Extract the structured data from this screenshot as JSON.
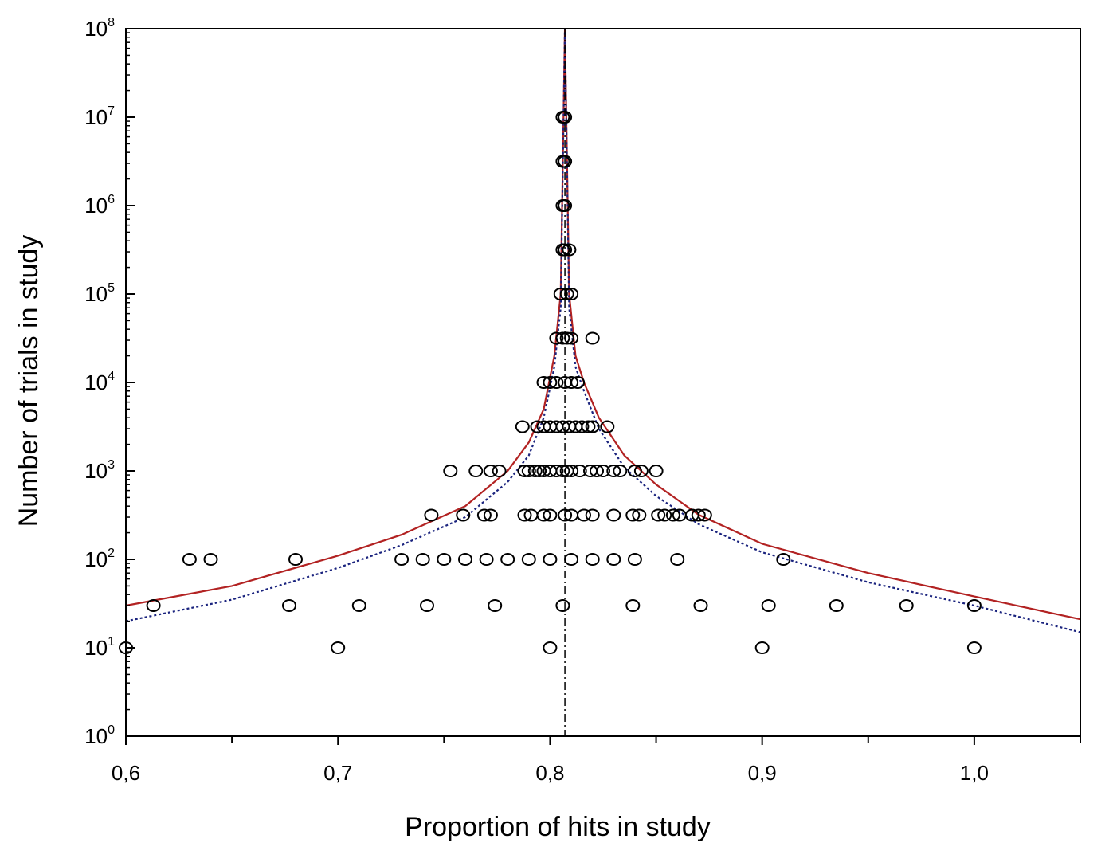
{
  "chart_data": {
    "type": "scatter",
    "title": "",
    "xlabel": "Proportion of hits in study",
    "ylabel": "Number of trials in study",
    "xlim": [
      0.6,
      1.05
    ],
    "ylim": [
      1,
      100000000
    ],
    "yscale": "log",
    "grid": false,
    "legend": "none",
    "x_ticks": [
      0.6,
      0.7,
      0.8,
      0.9,
      1.0
    ],
    "x_tick_labels": [
      "0,6",
      "0,7",
      "0,8",
      "0,9",
      "1,0"
    ],
    "y_ticks": [
      {
        "value": 1,
        "base": "10",
        "exp": "0"
      },
      {
        "value": 10,
        "base": "10",
        "exp": "1"
      },
      {
        "value": 100,
        "base": "10",
        "exp": "2"
      },
      {
        "value": 1000,
        "base": "10",
        "exp": "3"
      },
      {
        "value": 10000,
        "base": "10",
        "exp": "4"
      },
      {
        "value": 100000,
        "base": "10",
        "exp": "5"
      },
      {
        "value": 1000000,
        "base": "10",
        "exp": "6"
      },
      {
        "value": 10000000,
        "base": "10",
        "exp": "7"
      },
      {
        "value": 100000000,
        "base": "10",
        "exp": "8"
      }
    ],
    "reference_line_x": 0.807,
    "colors": {
      "solid_curve": "#b22222",
      "dotted_curve": "#1a237e",
      "markers": "#000000",
      "reference": "#000000"
    },
    "series": [
      {
        "type": "scatter",
        "points": [
          [
            0.6,
            10
          ],
          [
            0.7,
            10
          ],
          [
            0.8,
            10
          ],
          [
            0.9,
            10
          ],
          [
            1.0,
            10
          ],
          [
            0.613,
            30
          ],
          [
            0.677,
            30
          ],
          [
            0.71,
            30
          ],
          [
            0.742,
            30
          ],
          [
            0.774,
            30
          ],
          [
            0.806,
            30
          ],
          [
            0.839,
            30
          ],
          [
            0.871,
            30
          ],
          [
            0.903,
            30
          ],
          [
            0.935,
            30
          ],
          [
            0.968,
            30
          ],
          [
            1.0,
            30
          ],
          [
            0.63,
            100
          ],
          [
            0.64,
            100
          ],
          [
            0.68,
            100
          ],
          [
            0.73,
            100
          ],
          [
            0.74,
            100
          ],
          [
            0.75,
            100
          ],
          [
            0.76,
            100
          ],
          [
            0.77,
            100
          ],
          [
            0.78,
            100
          ],
          [
            0.79,
            100
          ],
          [
            0.8,
            100
          ],
          [
            0.81,
            100
          ],
          [
            0.82,
            100
          ],
          [
            0.83,
            100
          ],
          [
            0.84,
            100
          ],
          [
            0.86,
            100
          ],
          [
            0.91,
            100
          ],
          [
            0.744,
            316
          ],
          [
            0.759,
            316
          ],
          [
            0.769,
            316
          ],
          [
            0.772,
            316
          ],
          [
            0.788,
            316
          ],
          [
            0.791,
            316
          ],
          [
            0.797,
            316
          ],
          [
            0.8,
            316
          ],
          [
            0.807,
            316
          ],
          [
            0.81,
            316
          ],
          [
            0.816,
            316
          ],
          [
            0.82,
            316
          ],
          [
            0.83,
            316
          ],
          [
            0.839,
            316
          ],
          [
            0.842,
            316
          ],
          [
            0.851,
            316
          ],
          [
            0.854,
            316
          ],
          [
            0.858,
            316
          ],
          [
            0.861,
            316
          ],
          [
            0.867,
            316
          ],
          [
            0.87,
            316
          ],
          [
            0.873,
            316
          ],
          [
            0.753,
            1000
          ],
          [
            0.765,
            1000
          ],
          [
            0.772,
            1000
          ],
          [
            0.776,
            1000
          ],
          [
            0.788,
            1000
          ],
          [
            0.79,
            1000
          ],
          [
            0.793,
            1000
          ],
          [
            0.795,
            1000
          ],
          [
            0.797,
            1000
          ],
          [
            0.8,
            1000
          ],
          [
            0.803,
            1000
          ],
          [
            0.806,
            1000
          ],
          [
            0.808,
            1000
          ],
          [
            0.81,
            1000
          ],
          [
            0.814,
            1000
          ],
          [
            0.819,
            1000
          ],
          [
            0.822,
            1000
          ],
          [
            0.825,
            1000
          ],
          [
            0.83,
            1000
          ],
          [
            0.833,
            1000
          ],
          [
            0.84,
            1000
          ],
          [
            0.843,
            1000
          ],
          [
            0.85,
            1000
          ],
          [
            0.787,
            3162
          ],
          [
            0.794,
            3162
          ],
          [
            0.797,
            3162
          ],
          [
            0.8,
            3162
          ],
          [
            0.803,
            3162
          ],
          [
            0.806,
            3162
          ],
          [
            0.809,
            3162
          ],
          [
            0.812,
            3162
          ],
          [
            0.815,
            3162
          ],
          [
            0.818,
            3162
          ],
          [
            0.82,
            3162
          ],
          [
            0.827,
            3162
          ],
          [
            0.797,
            10000
          ],
          [
            0.8,
            10000
          ],
          [
            0.803,
            10000
          ],
          [
            0.807,
            10000
          ],
          [
            0.81,
            10000
          ],
          [
            0.813,
            10000
          ],
          [
            0.803,
            31623
          ],
          [
            0.806,
            31623
          ],
          [
            0.808,
            31623
          ],
          [
            0.81,
            31623
          ],
          [
            0.82,
            31623
          ],
          [
            0.805,
            100000
          ],
          [
            0.808,
            100000
          ],
          [
            0.81,
            100000
          ],
          [
            0.806,
            316228
          ],
          [
            0.807,
            316228
          ],
          [
            0.809,
            316228
          ],
          [
            0.806,
            1000000
          ],
          [
            0.807,
            1000000
          ],
          [
            0.806,
            3162278
          ],
          [
            0.807,
            3162278
          ],
          [
            0.806,
            10000000
          ],
          [
            0.807,
            10000000
          ]
        ]
      },
      {
        "type": "line",
        "style": "solid",
        "points": [
          [
            0.6,
            30
          ],
          [
            0.65,
            50
          ],
          [
            0.7,
            110
          ],
          [
            0.73,
            190
          ],
          [
            0.76,
            400
          ],
          [
            0.78,
            1000
          ],
          [
            0.79,
            2100
          ],
          [
            0.797,
            5000
          ],
          [
            0.802,
            20000
          ],
          [
            0.805,
            100000
          ],
          [
            0.807,
            100000000
          ],
          [
            0.809,
            100000
          ],
          [
            0.812,
            20000
          ],
          [
            0.816,
            10000
          ],
          [
            0.823,
            4000
          ],
          [
            0.835,
            1500
          ],
          [
            0.85,
            700
          ],
          [
            0.87,
            320
          ],
          [
            0.9,
            150
          ],
          [
            0.95,
            70
          ],
          [
            1.0,
            38
          ],
          [
            1.05,
            21
          ]
        ]
      },
      {
        "type": "line",
        "style": "dotted",
        "points": [
          [
            0.6,
            20
          ],
          [
            0.65,
            35
          ],
          [
            0.7,
            80
          ],
          [
            0.73,
            145
          ],
          [
            0.76,
            300
          ],
          [
            0.78,
            750
          ],
          [
            0.79,
            1500
          ],
          [
            0.797,
            4000
          ],
          [
            0.802,
            15000
          ],
          [
            0.805,
            70000
          ],
          [
            0.807,
            100000000
          ],
          [
            0.809,
            70000
          ],
          [
            0.812,
            15000
          ],
          [
            0.816,
            8000
          ],
          [
            0.823,
            3000
          ],
          [
            0.835,
            1100
          ],
          [
            0.85,
            520
          ],
          [
            0.87,
            250
          ],
          [
            0.9,
            120
          ],
          [
            0.95,
            55
          ],
          [
            1.0,
            30
          ],
          [
            1.05,
            15
          ]
        ]
      }
    ]
  }
}
